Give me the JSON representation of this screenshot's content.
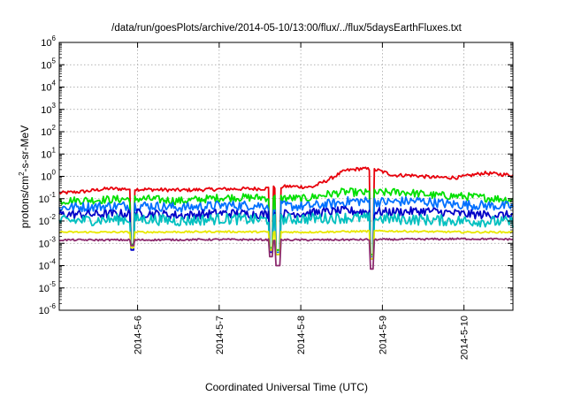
{
  "chart_data": {
    "type": "line",
    "title": "/data/run/goesPlots/archive/2014-05-10/13:00/flux/../flux/5daysEarthFluxes.txt",
    "xlabel": "Coordinated Universal Time (UTC)",
    "ylabel": {
      "prefix": "protons/cm",
      "sup": "2",
      "suffix": "-s-sr-MeV"
    },
    "yscale": "log",
    "ylim_exp": [
      -6,
      6
    ],
    "y_ticks": [
      {
        "exp": "-6"
      },
      {
        "exp": "-5"
      },
      {
        "exp": "-4"
      },
      {
        "exp": "-3"
      },
      {
        "exp": "-2"
      },
      {
        "exp": "-1"
      },
      {
        "exp": "0"
      },
      {
        "exp": "1"
      },
      {
        "exp": "2"
      },
      {
        "exp": "3"
      },
      {
        "exp": "4"
      },
      {
        "exp": "5"
      },
      {
        "exp": "6"
      }
    ],
    "xlim_days": [
      0,
      5.56
    ],
    "x_ticks": [
      {
        "label": "2014-5-6",
        "day": 0.96
      },
      {
        "label": "2014-5-7",
        "day": 1.96
      },
      {
        "label": "2014-5-8",
        "day": 2.96
      },
      {
        "label": "2014-5-9",
        "day": 3.96
      },
      {
        "label": "2014-5-10",
        "day": 4.96
      }
    ],
    "grid": true,
    "legend": "none",
    "series": [
      {
        "color": "#e8000b",
        "points": [
          [
            0,
            -0.75
          ],
          [
            0.3,
            -0.68
          ],
          [
            0.6,
            -0.55
          ],
          [
            1.0,
            -0.58
          ],
          [
            1.5,
            -0.62
          ],
          [
            2.0,
            -0.57
          ],
          [
            2.5,
            -0.55
          ],
          [
            2.8,
            -0.45
          ],
          [
            3.1,
            -0.48
          ],
          [
            3.3,
            -0.15
          ],
          [
            3.5,
            0.25
          ],
          [
            3.7,
            0.35
          ],
          [
            3.9,
            0.28
          ],
          [
            4.1,
            0.05
          ],
          [
            4.3,
            0.05
          ],
          [
            4.6,
            -0.05
          ],
          [
            4.9,
            -0.05
          ],
          [
            5.2,
            0.15
          ],
          [
            5.56,
            0.05
          ]
        ],
        "base": [
          -0.75,
          0.35
        ],
        "amp": 0.08
      },
      {
        "color": "#00e000",
        "points": [
          [
            0,
            -1.1
          ],
          [
            0.5,
            -1.05
          ],
          [
            1.0,
            -1.0
          ],
          [
            1.5,
            -1.1
          ],
          [
            2.0,
            -0.95
          ],
          [
            2.5,
            -0.95
          ],
          [
            3.0,
            -1.0
          ],
          [
            3.3,
            -0.8
          ],
          [
            3.5,
            -0.7
          ],
          [
            3.8,
            -0.75
          ],
          [
            4.2,
            -0.7
          ],
          [
            4.6,
            -0.85
          ],
          [
            5.0,
            -0.9
          ],
          [
            5.56,
            -1.05
          ]
        ],
        "amp": 0.18
      },
      {
        "color": "#0070ff",
        "points": [
          [
            0,
            -1.4
          ],
          [
            0.5,
            -1.35
          ],
          [
            1.0,
            -1.3
          ],
          [
            1.5,
            -1.4
          ],
          [
            2.0,
            -1.3
          ],
          [
            2.5,
            -1.3
          ],
          [
            3.0,
            -1.35
          ],
          [
            3.3,
            -1.25
          ],
          [
            3.6,
            -1.1
          ],
          [
            4.0,
            -1.15
          ],
          [
            4.4,
            -1.1
          ],
          [
            4.8,
            -1.25
          ],
          [
            5.2,
            -1.3
          ],
          [
            5.56,
            -1.35
          ]
        ],
        "amp": 0.22
      },
      {
        "color": "#0000c8",
        "points": [
          [
            0,
            -1.7
          ],
          [
            0.5,
            -1.7
          ],
          [
            1.0,
            -1.65
          ],
          [
            1.5,
            -1.75
          ],
          [
            2.0,
            -1.65
          ],
          [
            2.5,
            -1.7
          ],
          [
            3.0,
            -1.65
          ],
          [
            3.5,
            -1.55
          ],
          [
            4.0,
            -1.6
          ],
          [
            4.5,
            -1.55
          ],
          [
            5.0,
            -1.7
          ],
          [
            5.56,
            -1.75
          ]
        ],
        "amp": 0.2
      },
      {
        "color": "#00c0c0",
        "points": [
          [
            0,
            -2.0
          ],
          [
            0.5,
            -1.95
          ],
          [
            1.0,
            -1.9
          ],
          [
            1.5,
            -2.0
          ],
          [
            2.0,
            -1.9
          ],
          [
            2.5,
            -1.95
          ],
          [
            3.0,
            -1.9
          ],
          [
            3.5,
            -1.85
          ],
          [
            4.0,
            -1.9
          ],
          [
            4.5,
            -1.95
          ],
          [
            5.0,
            -2.0
          ],
          [
            5.56,
            -2.05
          ]
        ],
        "amp": 0.25
      },
      {
        "color": "#e8e800",
        "points": [
          [
            0,
            -2.5
          ],
          [
            1.0,
            -2.5
          ],
          [
            2.0,
            -2.48
          ],
          [
            3.0,
            -2.5
          ],
          [
            4.0,
            -2.45
          ],
          [
            5.0,
            -2.5
          ],
          [
            5.56,
            -2.5
          ]
        ],
        "amp": 0.04
      },
      {
        "color": "#8c2a6e",
        "points": [
          [
            0,
            -2.85
          ],
          [
            1.0,
            -2.85
          ],
          [
            2.0,
            -2.83
          ],
          [
            3.0,
            -2.85
          ],
          [
            4.0,
            -2.83
          ],
          [
            5.0,
            -2.8
          ],
          [
            5.56,
            -2.82
          ]
        ],
        "amp": 0.04
      }
    ],
    "dips": [
      {
        "day": 0.9,
        "depth": [
          -3.05,
          -3.05,
          -3.2,
          -3.3,
          -3.2,
          -3.2,
          -3.1
        ]
      },
      {
        "day": 2.6,
        "depth": [
          -3.2,
          -3.2,
          -3.3,
          -3.4,
          -3.3,
          -3.3,
          -3.6
        ]
      },
      {
        "day": 2.68,
        "depth": [
          -3.3,
          -3.3,
          -3.4,
          -3.5,
          -3.5,
          -3.5,
          -4.0
        ]
      },
      {
        "day": 3.83,
        "depth": [
          -3.5,
          -3.5,
          -3.6,
          -3.7,
          -3.7,
          -3.7,
          -4.15
        ]
      }
    ]
  }
}
